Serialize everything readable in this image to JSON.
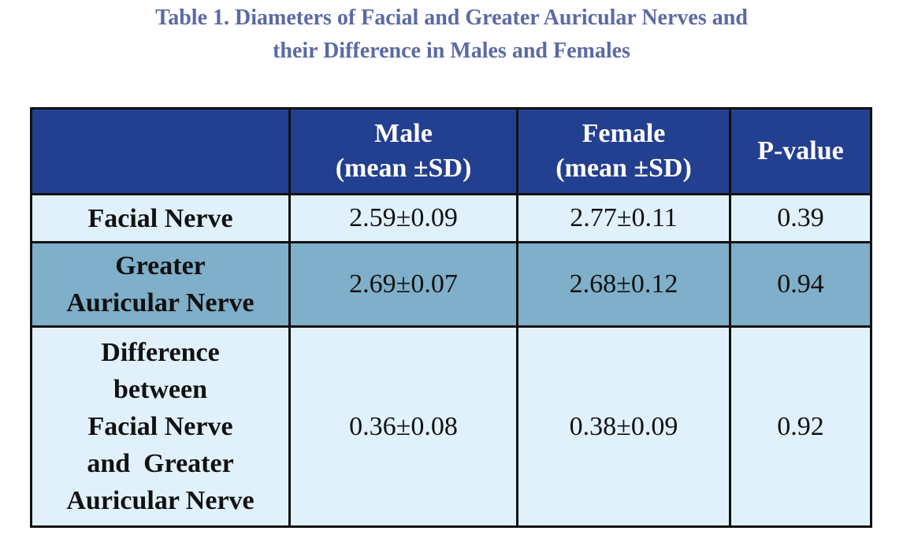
{
  "title": {
    "line1": "Table 1. Diameters of Facial and Greater Auricular Nerves and",
    "line2": "their Difference in Males and Females"
  },
  "table": {
    "header": {
      "corner": "",
      "male": {
        "line1": "Male",
        "line2": "(mean ±SD)"
      },
      "female": {
        "line1": "Female",
        "line2": "(mean ±SD)"
      },
      "pvalue": "P-value"
    },
    "rows": [
      {
        "label_lines": [
          "Facial Nerve"
        ],
        "male": "2.59±0.09",
        "female": "2.77±0.11",
        "pvalue": "0.39"
      },
      {
        "label_lines": [
          "Greater",
          "Auricular Nerve"
        ],
        "male": "2.69±0.07",
        "female": "2.68±0.12",
        "pvalue": "0.94"
      },
      {
        "label_lines": [
          "Difference",
          "between",
          "Facial Nerve",
          "and  Greater",
          "Auricular Nerve"
        ],
        "male": "0.36±0.08",
        "female": "0.38±0.09",
        "pvalue": "0.92"
      }
    ]
  },
  "colors": {
    "title": "#5b6aa3",
    "header_bg": "#233f8f",
    "row_light": "#e1f1fb",
    "row_dark": "#7fafc9",
    "border": "#111111"
  }
}
